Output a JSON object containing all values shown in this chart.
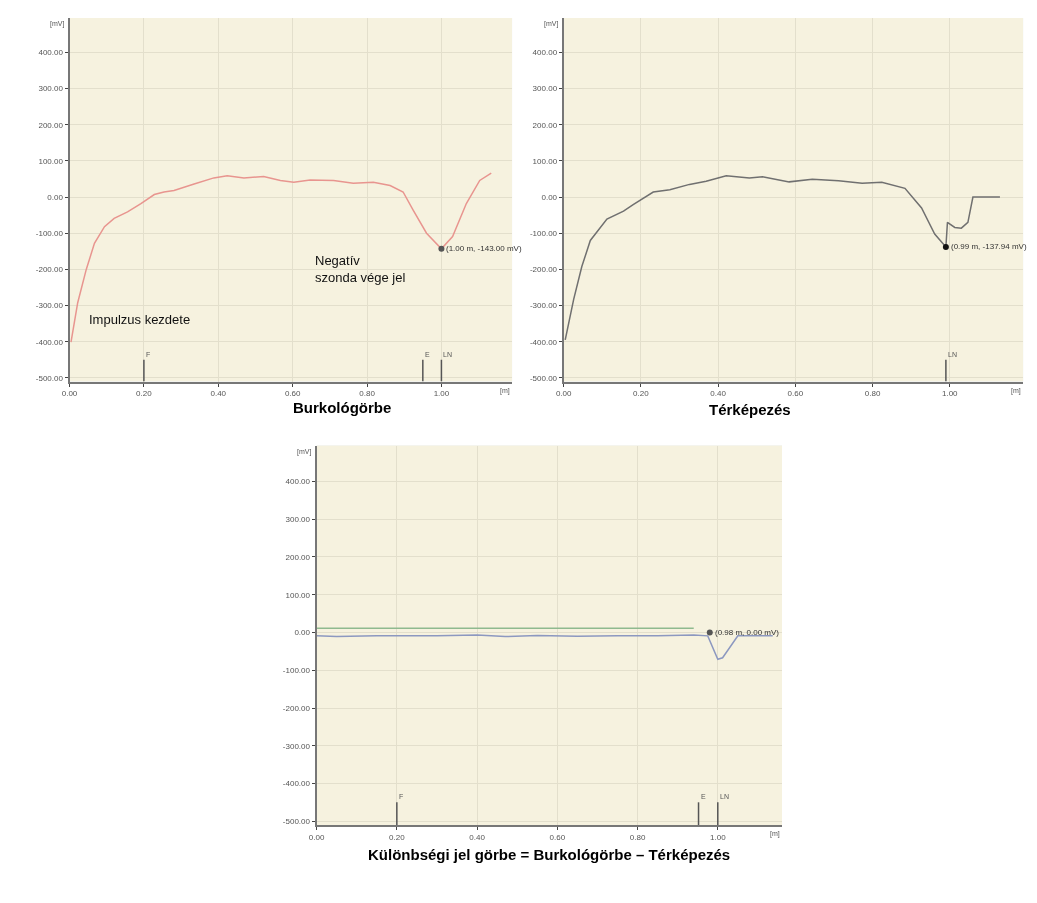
{
  "chart_data": [
    {
      "type": "line",
      "title": "Burkológörbe",
      "xlabel": "[m]",
      "ylabel": "[mV]",
      "xlim": [
        0,
        1.19
      ],
      "ylim": [
        -510,
        495
      ],
      "xticks": [
        {
          "value": 0,
          "label": "0.00"
        },
        {
          "value": 0.2,
          "label": "0.20"
        },
        {
          "value": 0.4,
          "label": "0.40"
        },
        {
          "value": 0.6,
          "label": "0.60"
        },
        {
          "value": 0.8,
          "label": "0.80"
        },
        {
          "value": 1.0,
          "label": "1.00"
        }
      ],
      "yticks": [
        {
          "value": -500,
          "label": "-500.00"
        },
        {
          "value": -400,
          "label": "-400.00"
        },
        {
          "value": -300,
          "label": "-300.00"
        },
        {
          "value": -200,
          "label": "-200.00"
        },
        {
          "value": -100,
          "label": "-100.00"
        },
        {
          "value": 0,
          "label": "0.00"
        },
        {
          "value": 100,
          "label": "100.00"
        },
        {
          "value": 200,
          "label": "200.00"
        },
        {
          "value": 300,
          "label": "300.00"
        },
        {
          "value": 400,
          "label": "400.00"
        }
      ],
      "grid": true,
      "series": [
        {
          "color": "#e8958f",
          "x": [
            0.004,
            0.022,
            0.045,
            0.067,
            0.094,
            0.12,
            0.156,
            0.192,
            0.228,
            0.254,
            0.281,
            0.335,
            0.388,
            0.424,
            0.469,
            0.522,
            0.567,
            0.603,
            0.647,
            0.71,
            0.763,
            0.817,
            0.862,
            0.897,
            0.924,
            0.96,
            1.0,
            1.03,
            1.067,
            1.103,
            1.134
          ],
          "values": [
            -401,
            -292,
            -200,
            -128,
            -82,
            -59,
            -41,
            -18,
            7,
            14,
            18,
            36,
            53,
            59,
            53,
            57,
            46,
            41,
            47,
            46,
            38,
            41,
            32,
            14,
            -36,
            -100,
            -143,
            -109,
            -18,
            46,
            66
          ]
        },
        {
          "type": "scatter",
          "color": "#555555",
          "x": [
            1.0
          ],
          "values": [
            -143
          ]
        }
      ],
      "ref_lines": [
        {
          "axis": "x",
          "value": 0.2,
          "label": "F"
        },
        {
          "axis": "x",
          "value": 0.95,
          "label": "E"
        },
        {
          "axis": "x",
          "value": 1.0,
          "label": "LN"
        }
      ],
      "annotations": [
        "Impulzus kezdete",
        "Negatív\nszonda vége jel",
        {
          "text": "(1.00 m, -143.00 mV)",
          "x": 1.0,
          "y": -143
        }
      ]
    },
    {
      "type": "line",
      "title": "Térképezés",
      "xlabel": "[m]",
      "ylabel": "[mV]",
      "xlim": [
        0,
        1.19
      ],
      "ylim": [
        -510,
        495
      ],
      "xticks": [
        {
          "value": 0,
          "label": "0.00"
        },
        {
          "value": 0.2,
          "label": "0.20"
        },
        {
          "value": 0.4,
          "label": "0.40"
        },
        {
          "value": 0.6,
          "label": "0.60"
        },
        {
          "value": 0.8,
          "label": "0.80"
        },
        {
          "value": 1.0,
          "label": "1.00"
        }
      ],
      "yticks": [
        {
          "value": -500,
          "label": "-500.00"
        },
        {
          "value": -400,
          "label": "-400.00"
        },
        {
          "value": -300,
          "label": "-300.00"
        },
        {
          "value": -200,
          "label": "-200.00"
        },
        {
          "value": -100,
          "label": "-100.00"
        },
        {
          "value": 0,
          "label": "0.00"
        },
        {
          "value": 100,
          "label": "100.00"
        },
        {
          "value": 200,
          "label": "200.00"
        },
        {
          "value": 300,
          "label": "300.00"
        },
        {
          "value": 400,
          "label": "400.00"
        }
      ],
      "grid": true,
      "series": [
        {
          "color": "#707070",
          "x": [
            0.004,
            0.026,
            0.047,
            0.069,
            0.112,
            0.155,
            0.18,
            0.232,
            0.275,
            0.326,
            0.369,
            0.421,
            0.481,
            0.515,
            0.584,
            0.644,
            0.712,
            0.773,
            0.824,
            0.884,
            0.927,
            0.961,
            0.99,
            0.994,
            1.013,
            1.03,
            1.047,
            1.06,
            1.13
          ],
          "values": [
            -395,
            -282,
            -192,
            -120,
            -61,
            -39,
            -21,
            14,
            20,
            35,
            44,
            59,
            53,
            56,
            42,
            49,
            45,
            38,
            41,
            24,
            -30,
            -102,
            -137.94,
            -70,
            -84,
            -86,
            -70,
            0,
            0
          ]
        },
        {
          "type": "scatter",
          "color": "#111111",
          "x": [
            0.99
          ],
          "values": [
            -137.94
          ]
        }
      ],
      "ref_lines": [
        {
          "axis": "x",
          "value": 0.99,
          "label": "LN"
        }
      ],
      "annotations": [
        {
          "text": "(0.99 m, -137.94 mV)",
          "x": 0.99,
          "y": -137.94
        }
      ]
    },
    {
      "type": "line",
      "title": "Különbségi jel görbe = Burkológörbe – Térképezés",
      "xlabel": "[m]",
      "ylabel": "[mV]",
      "xlim": [
        0,
        1.16
      ],
      "ylim": [
        -510,
        495
      ],
      "xticks": [
        {
          "value": 0,
          "label": "0.00"
        },
        {
          "value": 0.2,
          "label": "0.20"
        },
        {
          "value": 0.4,
          "label": "0.40"
        },
        {
          "value": 0.6,
          "label": "0.60"
        },
        {
          "value": 0.8,
          "label": "0.80"
        },
        {
          "value": 1.0,
          "label": "1.00"
        }
      ],
      "yticks": [
        {
          "value": -500,
          "label": "-500.00"
        },
        {
          "value": -400,
          "label": "-400.00"
        },
        {
          "value": -300,
          "label": "-300.00"
        },
        {
          "value": -200,
          "label": "-200.00"
        },
        {
          "value": -100,
          "label": "-100.00"
        },
        {
          "value": 0,
          "label": "0.00"
        },
        {
          "value": 100,
          "label": "100.00"
        },
        {
          "value": 200,
          "label": "200.00"
        },
        {
          "value": 300,
          "label": "300.00"
        },
        {
          "value": 400,
          "label": "400.00"
        }
      ],
      "grid": true,
      "series": [
        {
          "color": "#8fba8f",
          "x": [
            0.0,
            0.94
          ],
          "values": [
            11,
            11
          ]
        },
        {
          "color": "#8c98c0",
          "x": [
            0.0,
            0.05,
            0.15,
            0.3,
            0.4,
            0.47,
            0.55,
            0.65,
            0.75,
            0.85,
            0.94,
            0.975,
            1.0,
            1.012,
            1.05,
            1.137
          ],
          "values": [
            -9,
            -11,
            -9,
            -9,
            -7,
            -11,
            -8,
            -10,
            -9,
            -9,
            -7,
            -9,
            -71,
            -67,
            -9,
            -9
          ]
        },
        {
          "type": "scatter",
          "color": "#555555",
          "x": [
            0.98
          ],
          "values": [
            0
          ]
        }
      ],
      "ref_lines": [
        {
          "axis": "x",
          "value": 0.2,
          "label": "F"
        },
        {
          "axis": "x",
          "value": 0.952,
          "label": "E"
        },
        {
          "axis": "x",
          "value": 1.0,
          "label": "LN"
        }
      ],
      "annotations": [
        {
          "text": "(0.98 m, 0.00 mV)",
          "x": 0.98,
          "y": 0
        }
      ]
    }
  ]
}
